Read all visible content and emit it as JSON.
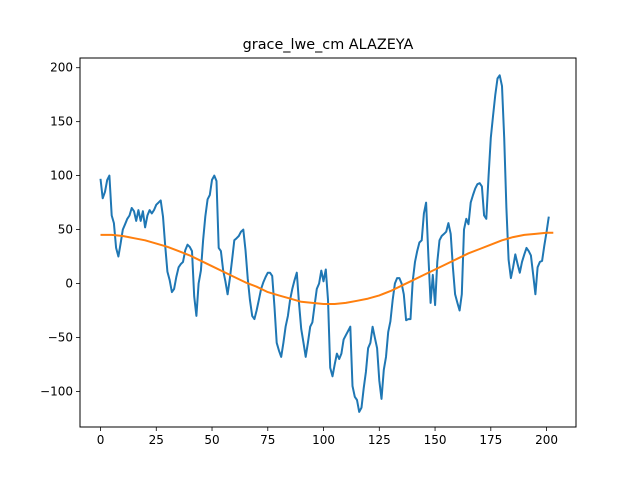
{
  "chart_data": {
    "type": "line",
    "title": "grace_lwe_cm ALAZEYA",
    "xlabel": "",
    "ylabel": "",
    "xlim": [
      -9.2,
      213.2
    ],
    "ylim": [
      -133,
      209
    ],
    "xticks": [
      0,
      25,
      50,
      75,
      100,
      125,
      150,
      175,
      200
    ],
    "yticks": [
      -100,
      -50,
      0,
      50,
      100,
      150,
      200
    ],
    "grid": false,
    "legend": "none",
    "series": [
      {
        "color": "#1f77b4",
        "points": [
          [
            0,
            97
          ],
          [
            1,
            79
          ],
          [
            2,
            85
          ],
          [
            3,
            96
          ],
          [
            4,
            100
          ],
          [
            5,
            63
          ],
          [
            6,
            56
          ],
          [
            7,
            33
          ],
          [
            8,
            25
          ],
          [
            9,
            37
          ],
          [
            10,
            50
          ],
          [
            11,
            55
          ],
          [
            12,
            60
          ],
          [
            13,
            63
          ],
          [
            14,
            70
          ],
          [
            15,
            67
          ],
          [
            16,
            58
          ],
          [
            17,
            68
          ],
          [
            18,
            58
          ],
          [
            19,
            67
          ],
          [
            20,
            52
          ],
          [
            21,
            63
          ],
          [
            22,
            68
          ],
          [
            23,
            65
          ],
          [
            24,
            68
          ],
          [
            25,
            73
          ],
          [
            26,
            75
          ],
          [
            27,
            77
          ],
          [
            28,
            62
          ],
          [
            29,
            35
          ],
          [
            30,
            11
          ],
          [
            31,
            3
          ],
          [
            32,
            -8
          ],
          [
            33,
            -5
          ],
          [
            34,
            6
          ],
          [
            35,
            15
          ],
          [
            36,
            18
          ],
          [
            37,
            20
          ],
          [
            38,
            31
          ],
          [
            39,
            36
          ],
          [
            40,
            34
          ],
          [
            41,
            30
          ],
          [
            42,
            -12
          ],
          [
            43,
            -30
          ],
          [
            44,
            0
          ],
          [
            45,
            12
          ],
          [
            46,
            40
          ],
          [
            47,
            62
          ],
          [
            48,
            78
          ],
          [
            49,
            82
          ],
          [
            50,
            96
          ],
          [
            51,
            100
          ],
          [
            52,
            95
          ],
          [
            53,
            33
          ],
          [
            54,
            30
          ],
          [
            55,
            12
          ],
          [
            56,
            2
          ],
          [
            57,
            -10
          ],
          [
            58,
            5
          ],
          [
            59,
            22
          ],
          [
            60,
            40
          ],
          [
            61,
            42
          ],
          [
            62,
            44
          ],
          [
            63,
            48
          ],
          [
            64,
            50
          ],
          [
            65,
            31
          ],
          [
            66,
            5
          ],
          [
            67,
            -15
          ],
          [
            68,
            -30
          ],
          [
            69,
            -33
          ],
          [
            70,
            -25
          ],
          [
            71,
            -15
          ],
          [
            72,
            -5
          ],
          [
            73,
            1
          ],
          [
            74,
            6
          ],
          [
            75,
            10
          ],
          [
            76,
            10
          ],
          [
            77,
            7
          ],
          [
            78,
            -22
          ],
          [
            79,
            -55
          ],
          [
            80,
            -62
          ],
          [
            81,
            -68
          ],
          [
            82,
            -55
          ],
          [
            83,
            -40
          ],
          [
            84,
            -30
          ],
          [
            85,
            -15
          ],
          [
            86,
            -5
          ],
          [
            87,
            3
          ],
          [
            88,
            10
          ],
          [
            89,
            -18
          ],
          [
            90,
            -42
          ],
          [
            91,
            -55
          ],
          [
            92,
            -68
          ],
          [
            93,
            -55
          ],
          [
            94,
            -40
          ],
          [
            95,
            -36
          ],
          [
            96,
            -20
          ],
          [
            97,
            -5
          ],
          [
            98,
            0
          ],
          [
            99,
            12
          ],
          [
            100,
            2
          ],
          [
            101,
            13
          ],
          [
            102,
            -15
          ],
          [
            103,
            -78
          ],
          [
            104,
            -86
          ],
          [
            105,
            -75
          ],
          [
            106,
            -65
          ],
          [
            107,
            -70
          ],
          [
            108,
            -65
          ],
          [
            109,
            -52
          ],
          [
            110,
            -48
          ],
          [
            111,
            -44
          ],
          [
            112,
            -40
          ],
          [
            113,
            -95
          ],
          [
            114,
            -105
          ],
          [
            115,
            -108
          ],
          [
            116,
            -119
          ],
          [
            117,
            -115
          ],
          [
            118,
            -97
          ],
          [
            119,
            -82
          ],
          [
            120,
            -60
          ],
          [
            121,
            -55
          ],
          [
            122,
            -40
          ],
          [
            123,
            -50
          ],
          [
            124,
            -60
          ],
          [
            125,
            -90
          ],
          [
            126,
            -107
          ],
          [
            127,
            -80
          ],
          [
            128,
            -68
          ],
          [
            129,
            -45
          ],
          [
            130,
            -35
          ],
          [
            131,
            -15
          ],
          [
            132,
            0
          ],
          [
            133,
            5
          ],
          [
            134,
            5
          ],
          [
            135,
            0
          ],
          [
            136,
            -10
          ],
          [
            137,
            -34
          ],
          [
            138,
            -33
          ],
          [
            139,
            -33
          ],
          [
            140,
            2
          ],
          [
            141,
            20
          ],
          [
            142,
            30
          ],
          [
            143,
            38
          ],
          [
            144,
            40
          ],
          [
            145,
            65
          ],
          [
            146,
            75
          ],
          [
            147,
            25
          ],
          [
            148,
            -18
          ],
          [
            149,
            8
          ],
          [
            150,
            -20
          ],
          [
            151,
            20
          ],
          [
            152,
            40
          ],
          [
            153,
            44
          ],
          [
            154,
            46
          ],
          [
            155,
            48
          ],
          [
            156,
            56
          ],
          [
            157,
            46
          ],
          [
            158,
            15
          ],
          [
            159,
            -10
          ],
          [
            160,
            -18
          ],
          [
            161,
            -25
          ],
          [
            162,
            -10
          ],
          [
            163,
            50
          ],
          [
            164,
            60
          ],
          [
            165,
            55
          ],
          [
            166,
            75
          ],
          [
            167,
            82
          ],
          [
            168,
            88
          ],
          [
            169,
            92
          ],
          [
            170,
            93
          ],
          [
            171,
            90
          ],
          [
            172,
            63
          ],
          [
            173,
            60
          ],
          [
            174,
            100
          ],
          [
            175,
            135
          ],
          [
            176,
            155
          ],
          [
            177,
            175
          ],
          [
            178,
            190
          ],
          [
            179,
            193
          ],
          [
            180,
            183
          ],
          [
            181,
            135
          ],
          [
            182,
            70
          ],
          [
            183,
            22
          ],
          [
            184,
            5
          ],
          [
            185,
            15
          ],
          [
            186,
            27
          ],
          [
            187,
            18
          ],
          [
            188,
            10
          ],
          [
            189,
            20
          ],
          [
            190,
            27
          ],
          [
            191,
            33
          ],
          [
            192,
            30
          ],
          [
            193,
            26
          ],
          [
            194,
            8
          ],
          [
            195,
            -10
          ],
          [
            196,
            15
          ],
          [
            197,
            20
          ],
          [
            198,
            21
          ],
          [
            199,
            35
          ],
          [
            200,
            48
          ],
          [
            201,
            62
          ]
        ]
      },
      {
        "color": "#ff7f0e",
        "points": [
          [
            0,
            45
          ],
          [
            5,
            45
          ],
          [
            10,
            44
          ],
          [
            15,
            42
          ],
          [
            20,
            40
          ],
          [
            25,
            37
          ],
          [
            30,
            34
          ],
          [
            35,
            30
          ],
          [
            40,
            26
          ],
          [
            45,
            21
          ],
          [
            50,
            16
          ],
          [
            55,
            11
          ],
          [
            60,
            6
          ],
          [
            65,
            1
          ],
          [
            70,
            -3
          ],
          [
            75,
            -8
          ],
          [
            80,
            -11
          ],
          [
            85,
            -14
          ],
          [
            90,
            -17
          ],
          [
            95,
            -18
          ],
          [
            100,
            -19
          ],
          [
            105,
            -19
          ],
          [
            110,
            -18
          ],
          [
            115,
            -16
          ],
          [
            120,
            -14
          ],
          [
            125,
            -11
          ],
          [
            130,
            -7
          ],
          [
            135,
            -2
          ],
          [
            140,
            3
          ],
          [
            145,
            8
          ],
          [
            150,
            13
          ],
          [
            155,
            18
          ],
          [
            160,
            23
          ],
          [
            165,
            28
          ],
          [
            170,
            32
          ],
          [
            175,
            36
          ],
          [
            180,
            40
          ],
          [
            185,
            43
          ],
          [
            190,
            45
          ],
          [
            195,
            46
          ],
          [
            200,
            47
          ],
          [
            203,
            47
          ]
        ]
      }
    ]
  }
}
